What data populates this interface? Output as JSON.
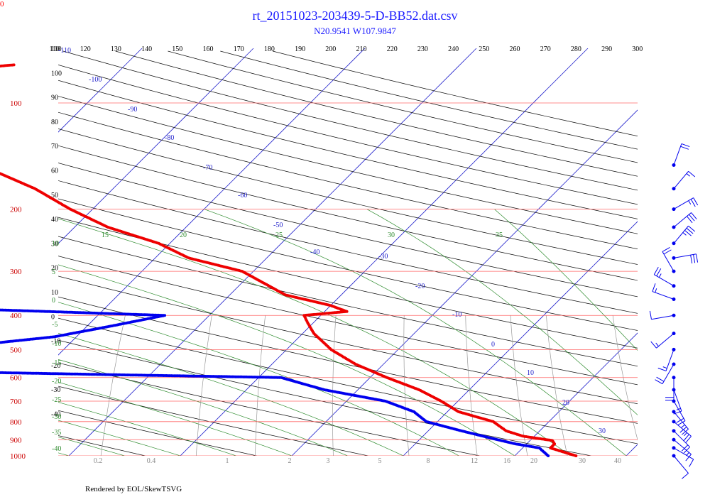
{
  "corner_label": "0",
  "chart_data": {
    "type": "skew-t",
    "title": "rt_20151023-203439-5-D-BB52.dat.csv",
    "subtitle": "N20.9541 W107.9847",
    "footer": "Rendered by EOL/SkewTSVG",
    "colors": {
      "isobar": "#ff6666",
      "isotherm": "#2222cc",
      "dry_adiabat": "#111111",
      "moist_adiabat": "#2e8b2e",
      "mixing_ratio": "#999999",
      "temperature": "#ee0000",
      "dewpoint": "#0000ee",
      "title": "#1a1aff"
    },
    "pressure_levels_hPa": [
      100,
      200,
      300,
      400,
      500,
      600,
      700,
      800,
      900,
      1000
    ],
    "theta_labels_K": [
      110,
      120,
      130,
      140,
      150,
      160,
      170,
      180,
      190,
      200,
      210,
      220,
      230,
      240,
      250,
      260,
      270,
      280,
      290,
      300
    ],
    "left_temp_labels": [
      "110",
      "100",
      "90",
      "80",
      "70",
      "60",
      "50",
      "40",
      "30",
      "20",
      "10",
      "0",
      "-10",
      "-20",
      "-30",
      "-40"
    ],
    "isotherm_labels_C": [
      "-110",
      "-100",
      "-90",
      "-80",
      "-70",
      "-60",
      "-50",
      "-40",
      "-30",
      "-20",
      "-10",
      "0",
      "10",
      "20",
      "30"
    ],
    "moist_adiabat_labels": [
      "15",
      "20",
      "25",
      "30",
      "35"
    ],
    "moist_left_labels": [
      "10",
      "5",
      "0",
      "-5",
      "-10",
      "-15",
      "-20",
      "-25",
      "-30",
      "-35",
      "-40"
    ],
    "mixing_ratio_labels": [
      "0.2",
      "0.4",
      "1",
      "2",
      "3",
      "5",
      "8",
      "12",
      "16",
      "20",
      "30",
      "40"
    ],
    "temperature_profile": [
      {
        "p": 1000,
        "t": 25.5
      },
      {
        "p": 975,
        "t": 24
      },
      {
        "p": 950,
        "t": 22.5
      },
      {
        "p": 925,
        "t": 22.5
      },
      {
        "p": 905,
        "t": 22
      },
      {
        "p": 880,
        "t": 19
      },
      {
        "p": 850,
        "t": 17
      },
      {
        "p": 800,
        "t": 15
      },
      {
        "p": 750,
        "t": 11
      },
      {
        "p": 700,
        "t": 8.5
      },
      {
        "p": 650,
        "t": 5.5
      },
      {
        "p": 600,
        "t": 1.5
      },
      {
        "p": 550,
        "t": -2.5
      },
      {
        "p": 500,
        "t": -6
      },
      {
        "p": 450,
        "t": -9
      },
      {
        "p": 420,
        "t": -10.5
      },
      {
        "p": 400,
        "t": -11.5
      },
      {
        "p": 390,
        "t": -8
      },
      {
        "p": 375,
        "t": -10
      },
      {
        "p": 350,
        "t": -15
      },
      {
        "p": 300,
        "t": -21
      },
      {
        "p": 275,
        "t": -27
      },
      {
        "p": 250,
        "t": -31
      },
      {
        "p": 225,
        "t": -37
      },
      {
        "p": 200,
        "t": -42
      },
      {
        "p": 175,
        "t": -47
      },
      {
        "p": 150,
        "t": -54
      },
      {
        "p": 125,
        "t": -61
      },
      {
        "p": 105,
        "t": -71
      },
      {
        "p": 100,
        "t": -74
      },
      {
        "p": 96,
        "t": -74
      },
      {
        "p": 90,
        "t": -76
      },
      {
        "p": 86,
        "t": -71
      },
      {
        "p": 82,
        "t": -67
      },
      {
        "p": 78,
        "t": -60
      }
    ],
    "dewpoint_profile": [
      {
        "p": 1000,
        "t": 23
      },
      {
        "p": 950,
        "t": 21.5
      },
      {
        "p": 925,
        "t": 19
      },
      {
        "p": 900,
        "t": 17
      },
      {
        "p": 850,
        "t": 13
      },
      {
        "p": 800,
        "t": 9
      },
      {
        "p": 750,
        "t": 7
      },
      {
        "p": 700,
        "t": 3.5
      },
      {
        "p": 650,
        "t": -3
      },
      {
        "p": 600,
        "t": -8
      },
      {
        "p": 590,
        "t": -22
      },
      {
        "p": 575,
        "t": -42
      },
      {
        "p": 565,
        "t": -58
      },
      {
        "p": 545,
        "t": -67
      },
      {
        "p": 530,
        "t": -59
      },
      {
        "p": 500,
        "t": -45
      },
      {
        "p": 480,
        "t": -37
      },
      {
        "p": 460,
        "t": -32
      },
      {
        "p": 430,
        "t": -28
      },
      {
        "p": 400,
        "t": -24
      },
      {
        "p": 380,
        "t": -46
      },
      {
        "p": 360,
        "t": -54
      },
      {
        "p": 340,
        "t": -53
      },
      {
        "p": 320,
        "t": -52
      },
      {
        "p": 300,
        "t": -53
      },
      {
        "p": 285,
        "t": -56
      },
      {
        "p": 270,
        "t": -64
      },
      {
        "p": 255,
        "t": -74
      },
      {
        "p": 240,
        "t": -86
      },
      {
        "p": 220,
        "t": -99
      },
      {
        "p": 210,
        "t": -107
      }
    ],
    "wind_barbs": [
      {
        "p": 150,
        "dir": 20,
        "kt": 20
      },
      {
        "p": 175,
        "dir": 40,
        "kt": 15
      },
      {
        "p": 200,
        "dir": 60,
        "kt": 25
      },
      {
        "p": 225,
        "dir": 50,
        "kt": 30
      },
      {
        "p": 250,
        "dir": 40,
        "kt": 35
      },
      {
        "p": 275,
        "dir": 80,
        "kt": 30
      },
      {
        "p": 300,
        "dir": 330,
        "kt": 20
      },
      {
        "p": 330,
        "dir": 300,
        "kt": 25
      },
      {
        "p": 360,
        "dir": 290,
        "kt": 15
      },
      {
        "p": 400,
        "dir": 260,
        "kt": 10
      },
      {
        "p": 450,
        "dir": 230,
        "kt": 15
      },
      {
        "p": 500,
        "dir": 200,
        "kt": 15
      },
      {
        "p": 550,
        "dir": 210,
        "kt": 20
      },
      {
        "p": 600,
        "dir": 180,
        "kt": 20
      },
      {
        "p": 650,
        "dir": 160,
        "kt": 15
      },
      {
        "p": 700,
        "dir": 150,
        "kt": 20
      },
      {
        "p": 750,
        "dir": 140,
        "kt": 25
      },
      {
        "p": 800,
        "dir": 130,
        "kt": 25
      },
      {
        "p": 850,
        "dir": 135,
        "kt": 20
      },
      {
        "p": 900,
        "dir": 130,
        "kt": 15
      },
      {
        "p": 950,
        "dir": 120,
        "kt": 10
      },
      {
        "p": 1000,
        "dir": 140,
        "kt": 10
      }
    ]
  }
}
